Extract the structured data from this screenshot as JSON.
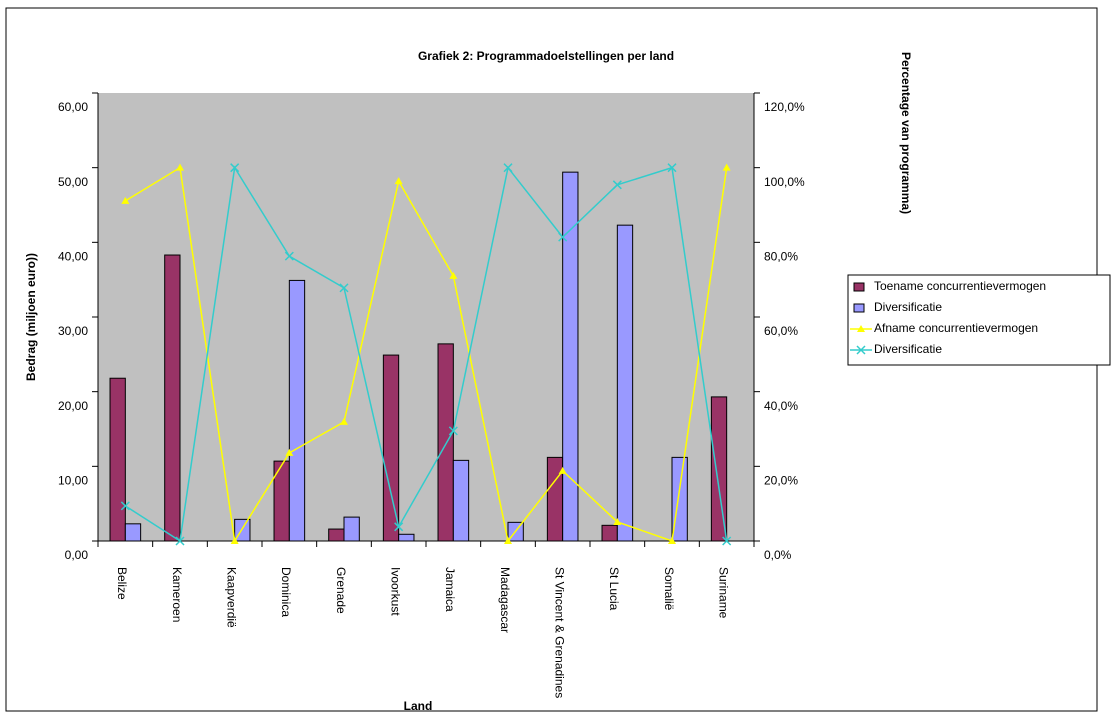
{
  "chart_data": {
    "type": "bar-line",
    "title": "Grafiek 2: Programmadoelstellingen per land",
    "x_label": "Land",
    "y_label": "Bedrag (miljoen euro))",
    "y2_label": "Percentage van programma)",
    "categories": [
      "Belize",
      "Kameroen",
      "Kaapverdië",
      "Dominica",
      "Grenade",
      "Ivoorkust",
      "Jamaica",
      "Madagascar",
      "St Vincent & Grenadines",
      "St Lucia",
      "Somalië",
      "Suriname"
    ],
    "ylim": [
      0,
      60
    ],
    "yticks": [
      {
        "value": 0,
        "label": "0,00"
      },
      {
        "value": 10,
        "label": "10,00"
      },
      {
        "value": 20,
        "label": "20,00"
      },
      {
        "value": 30,
        "label": "30,00"
      },
      {
        "value": 40,
        "label": "40,00"
      },
      {
        "value": 50,
        "label": "50,00"
      },
      {
        "value": 60,
        "label": "60,00"
      }
    ],
    "y2lim": [
      0,
      120
    ],
    "y2ticks": [
      {
        "value": 0,
        "label": "0,0%"
      },
      {
        "value": 20,
        "label": "20,0%"
      },
      {
        "value": 40,
        "label": "40,0%"
      },
      {
        "value": 60,
        "label": "60,0%"
      },
      {
        "value": 80,
        "label": "80,0%"
      },
      {
        "value": 100,
        "label": "100,0%"
      },
      {
        "value": 120,
        "label": "120,0%"
      }
    ],
    "series": [
      {
        "name": "Toename concurrentievermogen",
        "kind": "bar",
        "color": "#993366",
        "values": [
          21.8,
          38.3,
          0,
          10.7,
          1.6,
          24.9,
          26.4,
          0,
          11.2,
          2.1,
          0,
          19.3
        ]
      },
      {
        "name": "Diversificatie",
        "kind": "bar",
        "color": "#9999ff",
        "values": [
          2.3,
          0,
          2.9,
          34.9,
          3.2,
          0.9,
          10.8,
          2.5,
          49.4,
          42.3,
          11.2,
          0
        ]
      },
      {
        "name": "Afname concurrentievermogen",
        "kind": "line",
        "axis": "y2",
        "marker": "triangle",
        "color": "#ffff00",
        "values": [
          91.1,
          100,
          0,
          23.6,
          31.9,
          96.4,
          71.0,
          0,
          18.8,
          5.1,
          0,
          100
        ]
      },
      {
        "name": "Diversificatie",
        "kind": "line",
        "axis": "y2",
        "marker": "x",
        "color": "#33cccc",
        "values": [
          9.4,
          0,
          100,
          76.3,
          67.8,
          3.8,
          29.5,
          100,
          81.4,
          95.4,
          100,
          0
        ]
      }
    ],
    "legend": "right"
  }
}
